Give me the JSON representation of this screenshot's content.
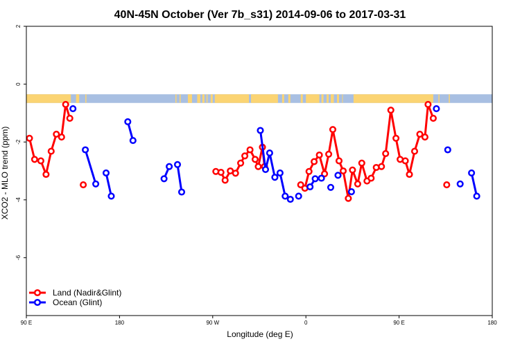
{
  "chart_data": {
    "type": "line",
    "title": "40N-45N October (Ver 7b_s31)   2014-09-06 to 2017-03-31",
    "xlabel": "Longitude (deg E)",
    "ylabel": "XCO2 - MLO trend (ppm)",
    "xlim": [
      90,
      540
    ],
    "ylim": [
      -8,
      2
    ],
    "x_ticks": [
      {
        "value": 90,
        "label": "90 E"
      },
      {
        "value": 180,
        "label": "180"
      },
      {
        "value": 270,
        "label": "90 W"
      },
      {
        "value": 360,
        "label": "0"
      },
      {
        "value": 450,
        "label": "90 E"
      },
      {
        "value": 540,
        "label": "180"
      }
    ],
    "y_ticks": [
      {
        "value": 2,
        "label": "2"
      },
      {
        "value": 0,
        "label": "0"
      },
      {
        "value": -2,
        "label": "-2"
      },
      {
        "value": -4,
        "label": "-4"
      },
      {
        "value": -6,
        "label": "-6"
      }
    ],
    "grid": false,
    "legend_position": "bottom-left",
    "series": [
      {
        "name": "Land (Nadir&Glint)",
        "color": "#ff0000",
        "segments": [
          [
            [
              93,
              -1.87
            ],
            [
              98,
              -2.6
            ],
            [
              104,
              -2.65
            ],
            [
              109,
              -3.12
            ],
            [
              114,
              -2.32
            ],
            [
              119,
              -1.73
            ],
            [
              124,
              -1.83
            ],
            [
              128,
              -0.7
            ],
            [
              132,
              -1.18
            ]
          ],
          [
            [
              145,
              -3.48
            ]
          ],
          [
            [
              273,
              -3.02
            ],
            [
              278,
              -3.05
            ],
            [
              282,
              -3.32
            ],
            [
              287,
              -3.0
            ],
            [
              292,
              -3.08
            ],
            [
              297,
              -2.73
            ],
            [
              301,
              -2.48
            ],
            [
              306,
              -2.27
            ],
            [
              311,
              -2.6
            ],
            [
              314,
              -2.85
            ],
            [
              318,
              -2.18
            ],
            [
              320,
              -2.85
            ]
          ],
          [
            [
              355,
              -3.48
            ],
            [
              359,
              -3.6
            ],
            [
              363,
              -3.02
            ],
            [
              368,
              -2.68
            ],
            [
              373,
              -2.45
            ],
            [
              378,
              -3.1
            ],
            [
              382,
              -2.42
            ],
            [
              386,
              -1.57
            ],
            [
              392,
              -2.65
            ],
            [
              396,
              -3.0
            ],
            [
              401,
              -3.95
            ],
            [
              405,
              -2.97
            ],
            [
              410,
              -3.45
            ],
            [
              414,
              -2.73
            ],
            [
              419,
              -3.35
            ],
            [
              423,
              -3.25
            ],
            [
              428,
              -2.88
            ],
            [
              433,
              -2.85
            ],
            [
              437,
              -2.4
            ],
            [
              442,
              -0.9
            ],
            [
              447,
              -1.87
            ],
            [
              451,
              -2.6
            ],
            [
              456,
              -2.65
            ],
            [
              460,
              -3.12
            ],
            [
              465,
              -2.32
            ],
            [
              470,
              -1.73
            ],
            [
              475,
              -1.83
            ],
            [
              478,
              -0.7
            ],
            [
              483,
              -1.18
            ]
          ],
          [
            [
              496,
              -3.48
            ]
          ]
        ]
      },
      {
        "name": "Ocean (Glint)",
        "color": "#0000ff",
        "segments": [
          [
            [
              135,
              -0.85
            ]
          ],
          [
            [
              147,
              -2.27
            ],
            [
              157,
              -3.45
            ]
          ],
          [
            [
              167,
              -3.07
            ],
            [
              172,
              -3.87
            ]
          ],
          [
            [
              188,
              -1.3
            ],
            [
              193,
              -1.95
            ]
          ],
          [
            [
              223,
              -3.27
            ],
            [
              228,
              -2.85
            ]
          ],
          [
            [
              236,
              -2.78
            ],
            [
              240,
              -3.73
            ]
          ],
          [
            [
              316,
              -1.6
            ],
            [
              321,
              -2.95
            ],
            [
              325,
              -2.38
            ],
            [
              330,
              -3.22
            ],
            [
              335,
              -3.07
            ],
            [
              340,
              -3.87
            ],
            [
              345,
              -3.98
            ]
          ],
          [
            [
              353,
              -3.87
            ]
          ],
          [
            [
              364,
              -3.55
            ],
            [
              369,
              -3.27
            ],
            [
              375,
              -3.25
            ]
          ],
          [
            [
              384,
              -3.57
            ]
          ],
          [
            [
              391,
              -3.15
            ]
          ],
          [
            [
              404,
              -3.72
            ]
          ],
          [
            [
              486,
              -0.85
            ]
          ],
          [
            [
              497,
              -2.27
            ]
          ],
          [
            [
              509,
              -3.45
            ]
          ],
          [
            [
              520,
              -3.07
            ],
            [
              525,
              -3.87
            ]
          ]
        ]
      }
    ],
    "surface_bar": {
      "y_top": -0.35,
      "y_bottom": -0.65,
      "land_color": "#fbd473",
      "ocean_color": "#a8bfe2",
      "land_ranges": [
        [
          90,
          133
        ],
        [
          138,
          141
        ],
        [
          147,
          148
        ],
        [
          234,
          235
        ],
        [
          238,
          239
        ],
        [
          246,
          250
        ],
        [
          255,
          258
        ],
        [
          260,
          262
        ],
        [
          264,
          265
        ],
        [
          268,
          270
        ],
        [
          272,
          305
        ],
        [
          307,
          333
        ],
        [
          337,
          339
        ],
        [
          343,
          345
        ],
        [
          355,
          357
        ],
        [
          360,
          373
        ],
        [
          375,
          377
        ],
        [
          380,
          382
        ],
        [
          384,
          387
        ],
        [
          390,
          392
        ],
        [
          395,
          395
        ],
        [
          406,
          483
        ],
        [
          488,
          489
        ],
        [
          498,
          499
        ]
      ]
    }
  }
}
